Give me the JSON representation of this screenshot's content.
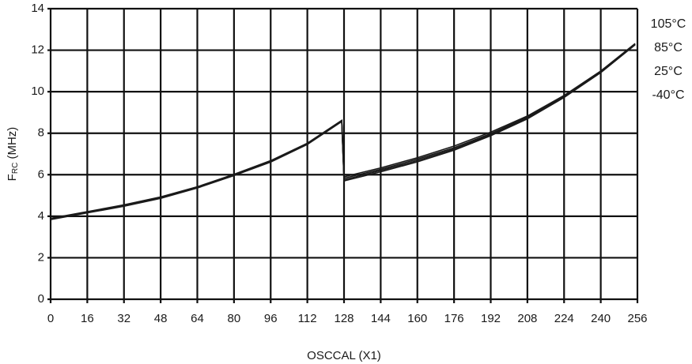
{
  "chart_data": {
    "type": "line",
    "xlabel": "OSCCAL (X1)",
    "ylabel": [
      "F",
      "RC",
      " (MHz)"
    ],
    "x": [
      0,
      16,
      32,
      48,
      64,
      80,
      96,
      112,
      127,
      128,
      144,
      160,
      176,
      192,
      208,
      224,
      240,
      255
    ],
    "series": [
      {
        "name": "105°C",
        "color": "#1a1a1a",
        "values": [
          3.9,
          4.22,
          4.55,
          4.93,
          5.42,
          6.02,
          6.68,
          7.52,
          8.62,
          5.9,
          6.33,
          6.82,
          7.38,
          8.05,
          8.83,
          9.82,
          11.0,
          12.32
        ]
      },
      {
        "name": "85°C",
        "color": "#1a1a1a",
        "values": [
          3.88,
          4.2,
          4.52,
          4.9,
          5.4,
          6.0,
          6.65,
          7.5,
          8.6,
          5.83,
          6.26,
          6.75,
          7.3,
          7.98,
          8.78,
          9.78,
          10.97,
          12.3
        ]
      },
      {
        "name": "25°C",
        "color": "#1a1a1a",
        "values": [
          3.86,
          4.18,
          4.5,
          4.88,
          5.38,
          5.98,
          6.63,
          7.48,
          8.58,
          5.76,
          6.2,
          6.68,
          7.24,
          7.93,
          8.73,
          9.75,
          10.95,
          12.28
        ]
      },
      {
        "name": "-40°C",
        "color": "#1a1a1a",
        "values": [
          3.84,
          4.16,
          4.48,
          4.86,
          5.36,
          5.96,
          6.61,
          7.46,
          8.56,
          5.7,
          6.14,
          6.62,
          7.18,
          7.88,
          8.69,
          9.72,
          10.92,
          12.26
        ]
      }
    ],
    "xlim": [
      0,
      256
    ],
    "xticks": [
      0,
      16,
      32,
      48,
      64,
      80,
      96,
      112,
      128,
      144,
      160,
      176,
      192,
      208,
      224,
      240,
      256
    ],
    "ylim": [
      0,
      14
    ],
    "yticks": [
      0,
      2,
      4,
      6,
      8,
      10,
      12,
      14
    ],
    "grid": true
  }
}
